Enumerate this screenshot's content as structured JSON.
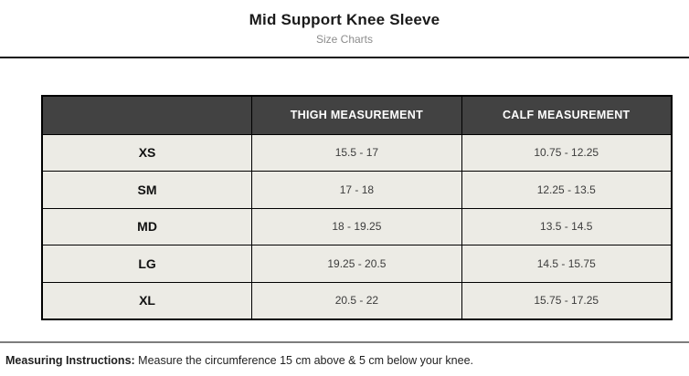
{
  "page": {
    "title": "Mid Support Knee Sleeve",
    "subtitle": "Size Charts"
  },
  "size_chart": {
    "columns": [
      "",
      "THIGH MEASUREMENT",
      "CALF MEASUREMENT"
    ],
    "rows": [
      {
        "size": "XS",
        "thigh": "15.5 - 17",
        "calf": "10.75 - 12.25"
      },
      {
        "size": "SM",
        "thigh": "17 - 18",
        "calf": "12.25 - 13.5"
      },
      {
        "size": "MD",
        "thigh": "18 - 19.25",
        "calf": "13.5 - 14.5"
      },
      {
        "size": "LG",
        "thigh": "19.25 - 20.5",
        "calf": "14.5 - 15.75"
      },
      {
        "size": "XL",
        "thigh": "20.5 - 22",
        "calf": "15.75 - 17.25"
      }
    ]
  },
  "footer": {
    "instructions_label": "Measuring Instructions:",
    "instructions_text": " Measure the circumference 15 cm above & 5 cm below your knee."
  },
  "colors": {
    "header_bg": "#424242",
    "header_text": "#ffffff",
    "row_bg": "#ECEBE5",
    "table_border": "#000000",
    "top_divider": "#111111",
    "bottom_divider": "#7d7d7d"
  }
}
